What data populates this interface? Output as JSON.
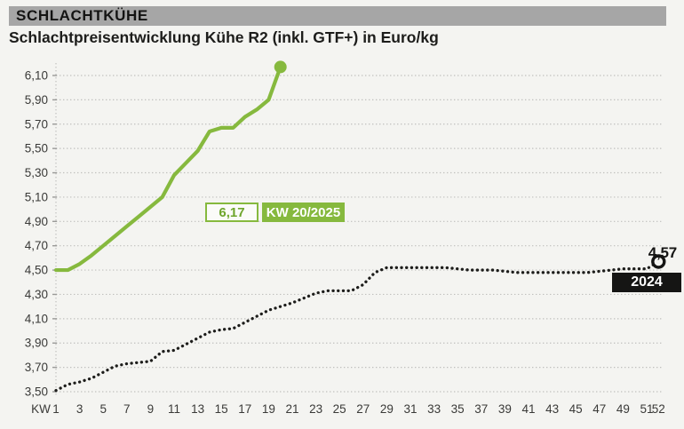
{
  "header": {
    "category": "SCHLACHTKÜHE",
    "title": "Schlachtpreisentwicklung Kühe R2 (inkl. GTF+) in Euro/kg"
  },
  "colors": {
    "background": "#f4f4f1",
    "header_bar": "#a6a6a6",
    "accent_green": "#86b93e",
    "line_black": "#1d1d1b",
    "gridline": "#c0c0be",
    "tick_text": "#3a3a38"
  },
  "chart_data": {
    "type": "line",
    "title": "Schlachtpreisentwicklung Kühe R2 (inkl. GTF+) in Euro/kg",
    "unit": "Euro/kg",
    "grid": "horizontal-dotted",
    "x_axis_prefix_label": "KW",
    "x_tick_labels": [
      1,
      3,
      5,
      7,
      9,
      11,
      13,
      15,
      17,
      19,
      21,
      23,
      25,
      27,
      29,
      31,
      33,
      35,
      37,
      39,
      41,
      43,
      45,
      47,
      49,
      51,
      52
    ],
    "x_range": [
      1,
      52
    ],
    "ylim": [
      3.5,
      6.25
    ],
    "y_ticks": {
      "values": [
        3.5,
        3.7,
        3.9,
        4.1,
        4.3,
        4.5,
        4.7,
        4.9,
        5.1,
        5.3,
        5.5,
        5.7,
        5.9,
        6.1
      ],
      "labels": [
        "3,50",
        "3,70",
        "3,90",
        "4,10",
        "4,30",
        "4,50",
        "4,70",
        "4,90",
        "5,10",
        "5,30",
        "5,50",
        "5,70",
        "5,90",
        "6,10"
      ]
    },
    "series": [
      {
        "name": "2025",
        "color": "#86b93e",
        "style": "solid",
        "end_marker": "filled-circle",
        "start_week": 1,
        "values": [
          4.5,
          4.5,
          4.55,
          4.62,
          4.7,
          4.78,
          4.86,
          4.94,
          5.02,
          5.1,
          5.28,
          5.38,
          5.48,
          5.64,
          5.67,
          5.67,
          5.76,
          5.82,
          5.9,
          6.17
        ],
        "callout": {
          "value_label": "6,17",
          "week_label": "KW 20/2025"
        }
      },
      {
        "name": "2024",
        "color": "#1d1d1b",
        "style": "dotted",
        "end_marker": "open-circle",
        "start_week": 1,
        "values": [
          3.51,
          3.56,
          3.58,
          3.61,
          3.66,
          3.71,
          3.73,
          3.74,
          3.75,
          3.83,
          3.84,
          3.89,
          3.94,
          3.99,
          4.01,
          4.02,
          4.07,
          4.12,
          4.17,
          4.2,
          4.23,
          4.27,
          4.31,
          4.33,
          4.33,
          4.33,
          4.38,
          4.48,
          4.52,
          4.52,
          4.52,
          4.52,
          4.52,
          4.52,
          4.51,
          4.5,
          4.5,
          4.5,
          4.49,
          4.48,
          4.48,
          4.48,
          4.48,
          4.48,
          4.48,
          4.48,
          4.49,
          4.5,
          4.51,
          4.51,
          4.51,
          4.57
        ],
        "callout": {
          "value_label": "4,57",
          "year_label": "2024"
        }
      }
    ]
  }
}
